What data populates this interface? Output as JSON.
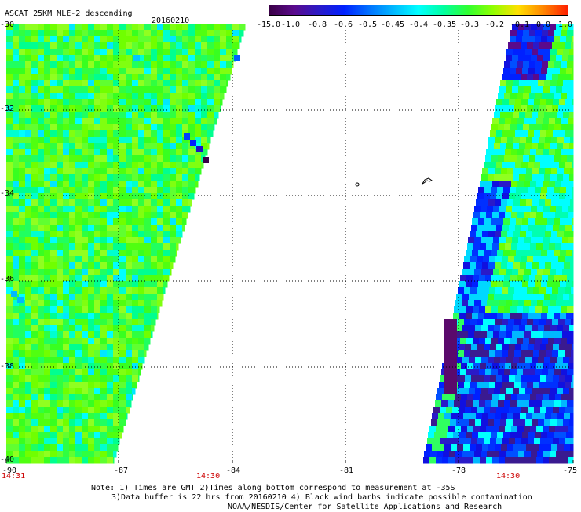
{
  "header": {
    "title": "ASCAT 25KM MLE-2 descending",
    "date": "20160210"
  },
  "colorbar": {
    "labels": [
      "-15.0",
      "-1.0",
      "-0.8",
      "-0.6",
      "-0.5",
      "-0.45",
      "-0.4",
      "-0.35",
      "-0.3",
      "-0.2",
      "-0.1",
      "0.0",
      "1.0"
    ],
    "colors": [
      "#3a0046",
      "#5a0a8c",
      "#2a1ac8",
      "#0020ff",
      "#0070ff",
      "#00b8ff",
      "#00ffff",
      "#00ffa0",
      "#30ff30",
      "#90ff00",
      "#ffe000",
      "#ff8800",
      "#ff2000"
    ]
  },
  "lat_labels": [
    "-30",
    "-32",
    "-34",
    "-36",
    "-38",
    "-40"
  ],
  "lon_labels": [
    "-90",
    "-87",
    "-84",
    "-81",
    "-78",
    "-75"
  ],
  "times": {
    "t1": "14:31",
    "t2": "14:30",
    "t3": "14:30"
  },
  "notes": {
    "line1": "Note: 1) Times are GMT 2)Times along bottom correspond to measurement at -35S",
    "line2": "3)Data buffer is 22 hrs from 20160210 4) Black wind barbs indicate possible contamination",
    "line3": "NOAA/NESDIS/Center for Satellite Applications and Research"
  },
  "map": {
    "lon_range": [
      -90,
      -75
    ],
    "lat_range": [
      -40,
      -30
    ],
    "grid_step_lon": 3,
    "grid_step_lat": 2
  }
}
